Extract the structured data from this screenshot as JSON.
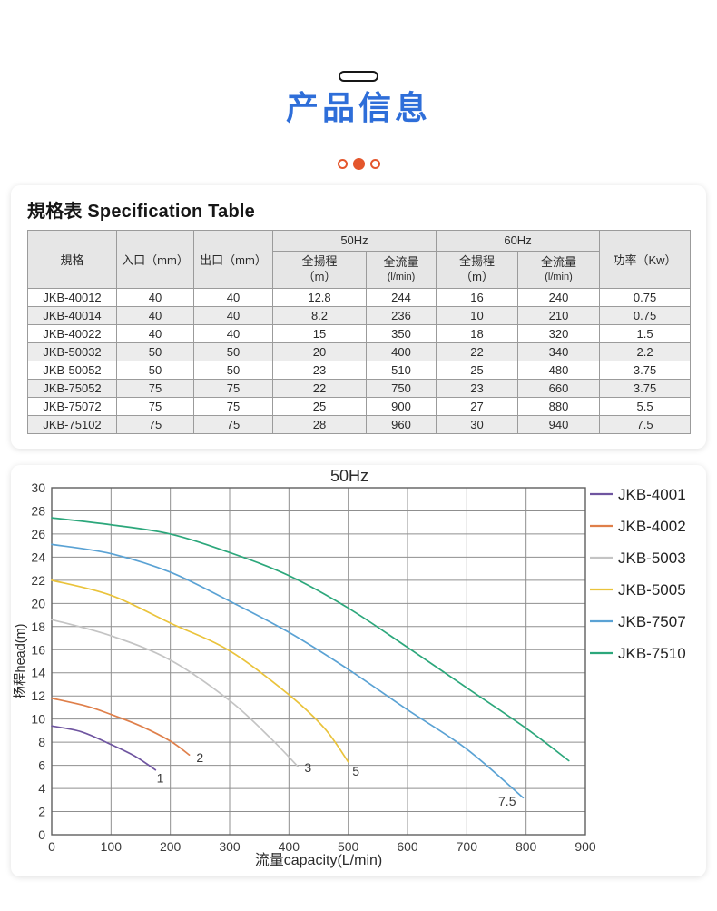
{
  "header": {
    "title": "产品信息",
    "accent_color": "#2e6ed9",
    "dots_color": "#e4562c"
  },
  "spec_section": {
    "title": "規格表 Specification Table",
    "columns": {
      "spec": "規格",
      "inlet": "入口（mm）",
      "outlet": "出口（mm）",
      "hz50": "50Hz",
      "hz60": "60Hz",
      "head": "全揚程",
      "head_unit": "（m）",
      "flow": "全流量",
      "flow_unit": "(l/min)",
      "power": "功率（Kw）"
    },
    "rows": [
      [
        "JKB-40012",
        "40",
        "40",
        "12.8",
        "244",
        "16",
        "240",
        "0.75"
      ],
      [
        "JKB-40014",
        "40",
        "40",
        "8.2",
        "236",
        "10",
        "210",
        "0.75"
      ],
      [
        "JKB-40022",
        "40",
        "40",
        "15",
        "350",
        "18",
        "320",
        "1.5"
      ],
      [
        "JKB-50032",
        "50",
        "50",
        "20",
        "400",
        "22",
        "340",
        "2.2"
      ],
      [
        "JKB-50052",
        "50",
        "50",
        "23",
        "510",
        "25",
        "480",
        "3.75"
      ],
      [
        "JKB-75052",
        "75",
        "75",
        "22",
        "750",
        "23",
        "660",
        "3.75"
      ],
      [
        "JKB-75072",
        "75",
        "75",
        "25",
        "900",
        "27",
        "880",
        "5.5"
      ],
      [
        "JKB-75102",
        "75",
        "75",
        "28",
        "960",
        "30",
        "940",
        "7.5"
      ]
    ]
  },
  "chart_data": {
    "type": "line",
    "title": "50Hz",
    "xlabel": "流量capacity(L/min)",
    "ylabel": "扬程head(m)",
    "xlim": [
      0,
      900
    ],
    "ylim": [
      0,
      30
    ],
    "xtick_step": 100,
    "ytick_step": 2,
    "grid": true,
    "legend_position": "right",
    "series": [
      {
        "name": "JKB-4001",
        "color": "#6f55a0",
        "end_label": "1",
        "label_at": [
          183,
          4.5
        ],
        "points": [
          [
            0,
            9.4
          ],
          [
            50,
            8.9
          ],
          [
            100,
            7.8
          ],
          [
            140,
            6.8
          ],
          [
            175,
            5.6
          ]
        ]
      },
      {
        "name": "JKB-4002",
        "color": "#df7f4a",
        "end_label": "2",
        "label_at": [
          250,
          6.3
        ],
        "points": [
          [
            0,
            11.8
          ],
          [
            60,
            11.1
          ],
          [
            100,
            10.4
          ],
          [
            150,
            9.4
          ],
          [
            200,
            8.1
          ],
          [
            232,
            6.9
          ]
        ]
      },
      {
        "name": "JKB-5003",
        "color": "#c4c4c4",
        "end_label": "3",
        "label_at": [
          432,
          5.4
        ],
        "points": [
          [
            0,
            18.6
          ],
          [
            100,
            17.2
          ],
          [
            200,
            15.1
          ],
          [
            300,
            11.6
          ],
          [
            370,
            8.3
          ],
          [
            415,
            5.9
          ]
        ]
      },
      {
        "name": "JKB-5005",
        "color": "#eac33b",
        "end_label": "5",
        "label_at": [
          513,
          5.1
        ],
        "points": [
          [
            0,
            22
          ],
          [
            100,
            20.7
          ],
          [
            200,
            18.3
          ],
          [
            300,
            15.9
          ],
          [
            400,
            12.1
          ],
          [
            460,
            9.2
          ],
          [
            500,
            6.3
          ]
        ]
      },
      {
        "name": "JKB-7507",
        "color": "#5aa2d4",
        "end_label": "7.5",
        "label_at": [
          768,
          2.5
        ],
        "points": [
          [
            0,
            25.1
          ],
          [
            100,
            24.3
          ],
          [
            200,
            22.7
          ],
          [
            300,
            20.2
          ],
          [
            400,
            17.5
          ],
          [
            500,
            14.3
          ],
          [
            600,
            10.8
          ],
          [
            700,
            7.4
          ],
          [
            795,
            3.2
          ]
        ]
      },
      {
        "name": "JKB-7510",
        "color": "#2ca77b",
        "end_label": "",
        "label_at": null,
        "points": [
          [
            0,
            27.4
          ],
          [
            100,
            26.8
          ],
          [
            200,
            26.0
          ],
          [
            300,
            24.4
          ],
          [
            400,
            22.4
          ],
          [
            500,
            19.6
          ],
          [
            600,
            16.2
          ],
          [
            700,
            12.7
          ],
          [
            800,
            9.2
          ],
          [
            872,
            6.4
          ]
        ]
      }
    ]
  }
}
